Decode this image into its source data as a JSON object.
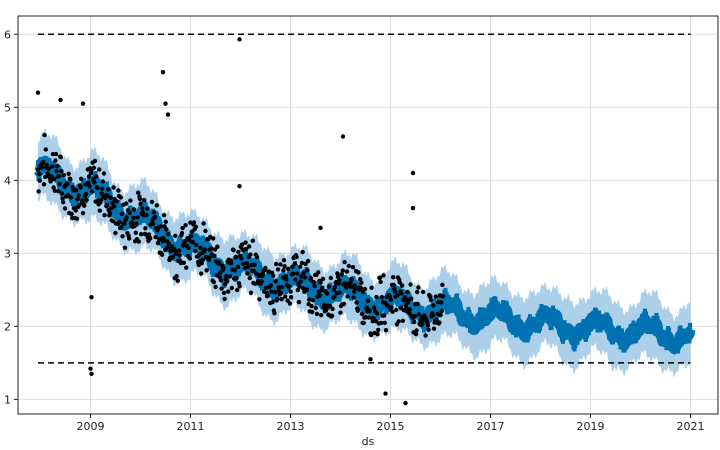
{
  "chart_data": {
    "type": "scatter",
    "xlabel": "ds",
    "ylabel": "",
    "xlim": [
      2007.55,
      2021.55
    ],
    "ylim": [
      0.8,
      6.25
    ],
    "x_ticks": [
      2009,
      2011,
      2013,
      2015,
      2017,
      2019,
      2021
    ],
    "x_tick_labels": [
      "2009",
      "2011",
      "2013",
      "2015",
      "2017",
      "2019",
      "2021"
    ],
    "y_ticks": [
      1,
      2,
      3,
      4,
      5,
      6
    ],
    "y_tick_labels": [
      "1",
      "2",
      "3",
      "4",
      "5",
      "6"
    ],
    "grid": true,
    "cap": 6.0,
    "floor": 1.5,
    "forecast_end": 2021.0,
    "history_start": 2007.95,
    "history_end": 2016.05,
    "trend": [
      {
        "x": 2007.95,
        "y": 4.12
      },
      {
        "x": 2009.0,
        "y": 3.85
      },
      {
        "x": 2010.0,
        "y": 3.45
      },
      {
        "x": 2011.0,
        "y": 3.05
      },
      {
        "x": 2012.0,
        "y": 2.78
      },
      {
        "x": 2013.0,
        "y": 2.58
      },
      {
        "x": 2014.0,
        "y": 2.45
      },
      {
        "x": 2015.0,
        "y": 2.32
      },
      {
        "x": 2016.0,
        "y": 2.22
      },
      {
        "x": 2017.0,
        "y": 2.12
      },
      {
        "x": 2018.0,
        "y": 2.04
      },
      {
        "x": 2019.0,
        "y": 1.98
      },
      {
        "x": 2020.0,
        "y": 1.92
      },
      {
        "x": 2021.0,
        "y": 1.88
      }
    ],
    "outliers": [
      {
        "x": 2007.95,
        "y": 5.2
      },
      {
        "x": 2008.4,
        "y": 5.1
      },
      {
        "x": 2008.85,
        "y": 5.05
      },
      {
        "x": 2010.45,
        "y": 5.48
      },
      {
        "x": 2010.5,
        "y": 5.05
      },
      {
        "x": 2010.55,
        "y": 4.9
      },
      {
        "x": 2011.98,
        "y": 5.93
      },
      {
        "x": 2011.98,
        "y": 3.92
      },
      {
        "x": 2014.05,
        "y": 4.6
      },
      {
        "x": 2015.45,
        "y": 4.1
      },
      {
        "x": 2015.45,
        "y": 3.62
      },
      {
        "x": 2009.0,
        "y": 1.42
      },
      {
        "x": 2009.02,
        "y": 1.35
      },
      {
        "x": 2014.6,
        "y": 1.55
      },
      {
        "x": 2014.9,
        "y": 1.08
      },
      {
        "x": 2015.3,
        "y": 0.95
      },
      {
        "x": 2009.02,
        "y": 2.4
      },
      {
        "x": 2013.6,
        "y": 3.35
      }
    ],
    "colors": {
      "observed": "#000000",
      "forecast": "#0072B2",
      "uncertainty": "#9ec8e6",
      "cap_floor": "#000000",
      "grid": "#dddddd",
      "axes": "#222222"
    }
  }
}
